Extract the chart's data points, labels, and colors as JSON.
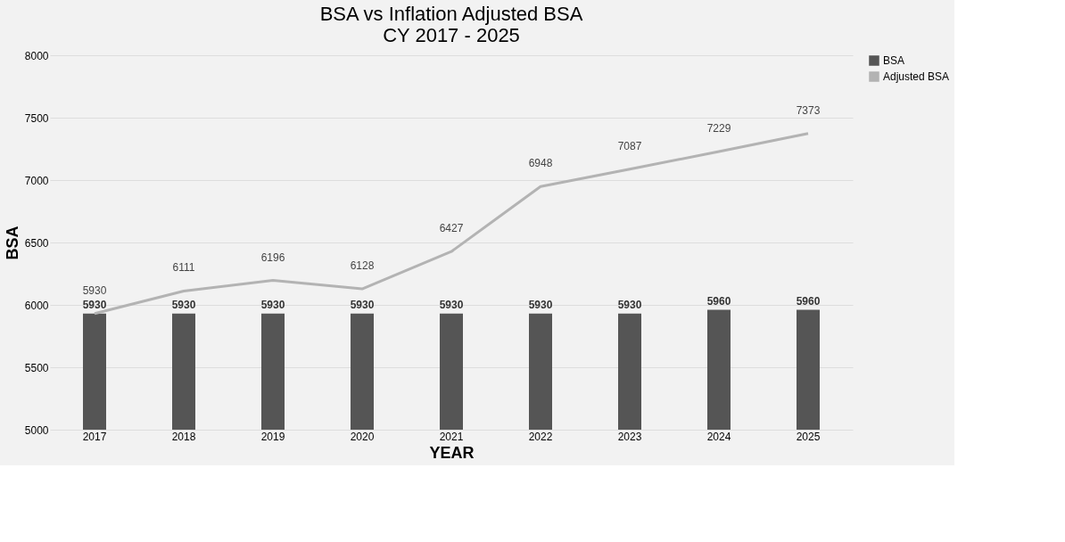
{
  "chart_data": {
    "type": "bar",
    "title": "BSA vs Inflation Adjusted BSA\nCY 2017 - 2025",
    "xlabel": "YEAR",
    "ylabel": "BSA",
    "categories": [
      "2017",
      "2018",
      "2019",
      "2020",
      "2021",
      "2022",
      "2023",
      "2024",
      "2025"
    ],
    "series": [
      {
        "name": "BSA",
        "color": "#555555",
        "values": [
          5930,
          5930,
          5930,
          5930,
          5930,
          5930,
          5930,
          5960,
          5960
        ]
      },
      {
        "name": "Adjusted BSA",
        "type": "line",
        "color": "#b3b3b3",
        "values": [
          5930,
          6111,
          6196,
          6128,
          6427,
          6948,
          7087,
          7229,
          7373
        ]
      }
    ],
    "ylim": [
      5000,
      8000
    ],
    "yticks": [
      5000,
      5500,
      6000,
      6500,
      7000,
      7500,
      8000
    ],
    "grid": "y",
    "legend": "right",
    "data_labels": true
  }
}
